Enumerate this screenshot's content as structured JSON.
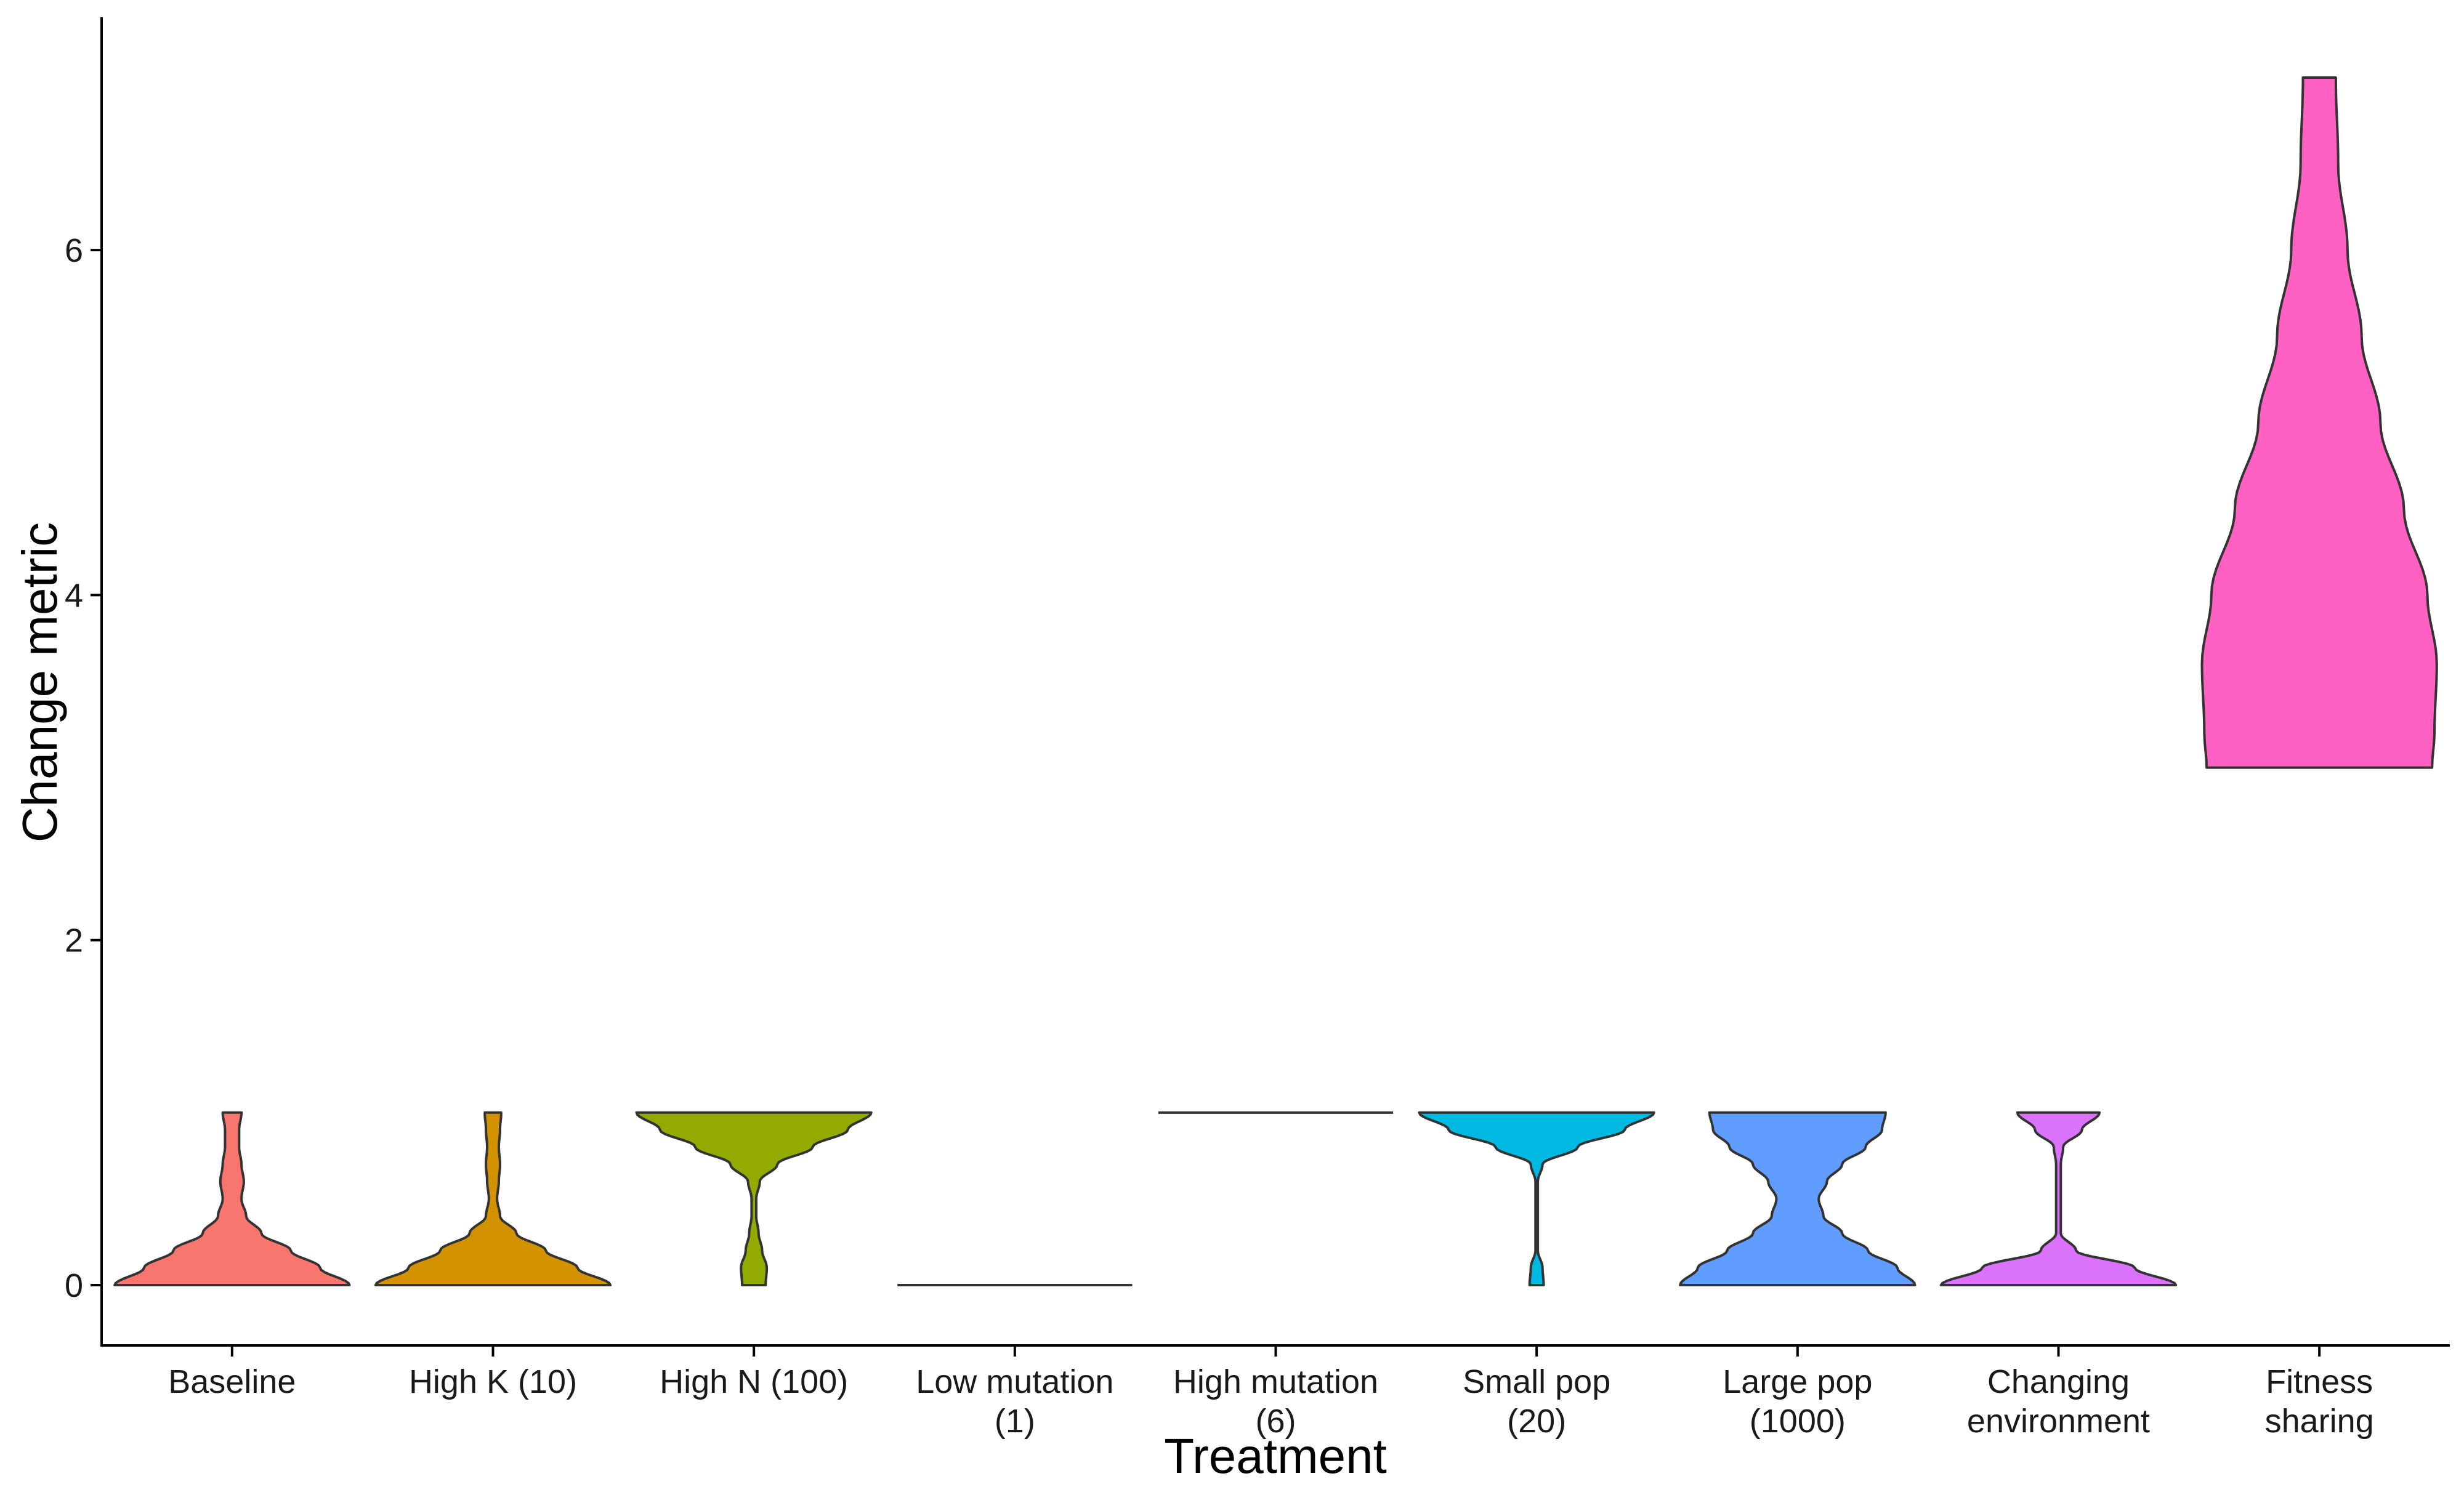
{
  "chart_data": {
    "type": "violin",
    "title": "",
    "xlabel": "Treatment",
    "ylabel": "Change metric",
    "ylim": [
      -0.35,
      7.35
    ],
    "yticks": [
      0,
      2,
      4,
      6
    ],
    "grid": false,
    "legend": "none",
    "categories": [
      {
        "label": [
          "Baseline"
        ],
        "color": "#F8766D",
        "min": 0,
        "max": 1,
        "profile": [
          [
            0,
            1.0
          ],
          [
            0.1,
            0.75
          ],
          [
            0.2,
            0.5
          ],
          [
            0.3,
            0.25
          ],
          [
            0.4,
            0.12
          ],
          [
            0.5,
            0.08
          ],
          [
            0.6,
            0.1
          ],
          [
            0.7,
            0.08
          ],
          [
            0.8,
            0.06
          ],
          [
            0.9,
            0.06
          ],
          [
            1,
            0.08
          ]
        ]
      },
      {
        "label": [
          "High K (10)"
        ],
        "color": "#D39200",
        "min": 0,
        "max": 1,
        "profile": [
          [
            0,
            1.0
          ],
          [
            0.1,
            0.72
          ],
          [
            0.2,
            0.45
          ],
          [
            0.3,
            0.2
          ],
          [
            0.4,
            0.06
          ],
          [
            0.5,
            0.035
          ],
          [
            0.6,
            0.05
          ],
          [
            0.7,
            0.06
          ],
          [
            0.8,
            0.05
          ],
          [
            0.9,
            0.06
          ],
          [
            1,
            0.07
          ]
        ]
      },
      {
        "label": [
          "High N (100)"
        ],
        "color": "#93AA00",
        "min": 0,
        "max": 1,
        "profile": [
          [
            0,
            0.1
          ],
          [
            0.1,
            0.11
          ],
          [
            0.2,
            0.07
          ],
          [
            0.3,
            0.04
          ],
          [
            0.4,
            0.02
          ],
          [
            0.5,
            0.02
          ],
          [
            0.6,
            0.05
          ],
          [
            0.7,
            0.2
          ],
          [
            0.8,
            0.5
          ],
          [
            0.9,
            0.8
          ],
          [
            1,
            1.0
          ]
        ]
      },
      {
        "label": [
          "Low mutation",
          "(1)"
        ],
        "color": "#00BA38",
        "min": 0,
        "max": 0,
        "profile": []
      },
      {
        "label": [
          "High mutation",
          "(6)"
        ],
        "color": "#00C19F",
        "min": 1,
        "max": 1,
        "profile": []
      },
      {
        "label": [
          "Small pop",
          "(20)"
        ],
        "color": "#00B9E3",
        "min": 0,
        "max": 1,
        "profile": [
          [
            0,
            0.06
          ],
          [
            0.1,
            0.05
          ],
          [
            0.2,
            0.01
          ],
          [
            0.3,
            0.01
          ],
          [
            0.4,
            0.01
          ],
          [
            0.5,
            0.01
          ],
          [
            0.6,
            0.01
          ],
          [
            0.7,
            0.05
          ],
          [
            0.8,
            0.35
          ],
          [
            0.9,
            0.75
          ],
          [
            1,
            1.0
          ]
        ]
      },
      {
        "label": [
          "Large pop",
          "(1000)"
        ],
        "color": "#619CFF",
        "min": 0,
        "max": 1,
        "profile": [
          [
            0,
            1.0
          ],
          [
            0.1,
            0.85
          ],
          [
            0.2,
            0.6
          ],
          [
            0.3,
            0.38
          ],
          [
            0.4,
            0.22
          ],
          [
            0.5,
            0.18
          ],
          [
            0.6,
            0.25
          ],
          [
            0.7,
            0.38
          ],
          [
            0.8,
            0.58
          ],
          [
            0.9,
            0.72
          ],
          [
            1,
            0.75
          ]
        ]
      },
      {
        "label": [
          "Changing",
          "environment"
        ],
        "color": "#DB72FB",
        "min": 0,
        "max": 1,
        "profile": [
          [
            0,
            1.0
          ],
          [
            0.1,
            0.65
          ],
          [
            0.2,
            0.15
          ],
          [
            0.3,
            0.02
          ],
          [
            0.4,
            0.02
          ],
          [
            0.5,
            0.02
          ],
          [
            0.6,
            0.02
          ],
          [
            0.7,
            0.02
          ],
          [
            0.8,
            0.04
          ],
          [
            0.9,
            0.2
          ],
          [
            1,
            0.35
          ]
        ]
      },
      {
        "label": [
          "Fitness",
          "sharing"
        ],
        "color": "#FF61C3",
        "min": 3,
        "max": 7,
        "profile": [
          [
            3,
            0.96
          ],
          [
            3.2,
            0.98
          ],
          [
            3.6,
            1.0
          ],
          [
            4.0,
            0.92
          ],
          [
            4.5,
            0.72
          ],
          [
            5.0,
            0.52
          ],
          [
            5.5,
            0.36
          ],
          [
            6.0,
            0.24
          ],
          [
            6.5,
            0.16
          ],
          [
            7,
            0.14
          ]
        ]
      }
    ]
  }
}
